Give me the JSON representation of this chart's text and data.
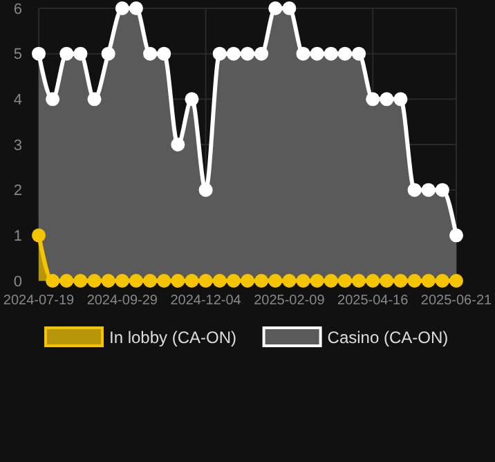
{
  "chart_data": {
    "type": "area",
    "categories": [
      "2024-07-19",
      null,
      null,
      null,
      null,
      null,
      "2024-09-29",
      null,
      null,
      null,
      null,
      null,
      "2024-12-04",
      null,
      null,
      null,
      null,
      null,
      "2025-02-09",
      null,
      null,
      null,
      null,
      null,
      "2025-04-16",
      null,
      null,
      null,
      null,
      null,
      "2025-06-21"
    ],
    "series": [
      {
        "name": "In lobby (CA-ON)",
        "color": "#f5c400",
        "values": [
          1,
          0,
          0,
          0,
          0,
          0,
          0,
          0,
          0,
          0,
          0,
          0,
          0,
          0,
          0,
          0,
          0,
          0,
          0,
          0,
          0,
          0,
          0,
          0,
          0,
          0,
          0,
          0,
          0,
          0,
          0
        ]
      },
      {
        "name": "Casino (CA-ON)",
        "color": "#ffffff",
        "values": [
          5,
          4,
          5,
          5,
          4,
          5,
          6,
          6,
          5,
          5,
          3,
          4,
          2,
          5,
          5,
          5,
          5,
          6,
          6,
          5,
          5,
          5,
          5,
          5,
          4,
          4,
          4,
          2,
          2,
          2,
          1
        ]
      }
    ],
    "ylim": [
      0,
      6
    ],
    "yticks": [
      0,
      1,
      2,
      3,
      4,
      5,
      6
    ],
    "grid": true,
    "legend": "bottom",
    "marker": "circle"
  }
}
